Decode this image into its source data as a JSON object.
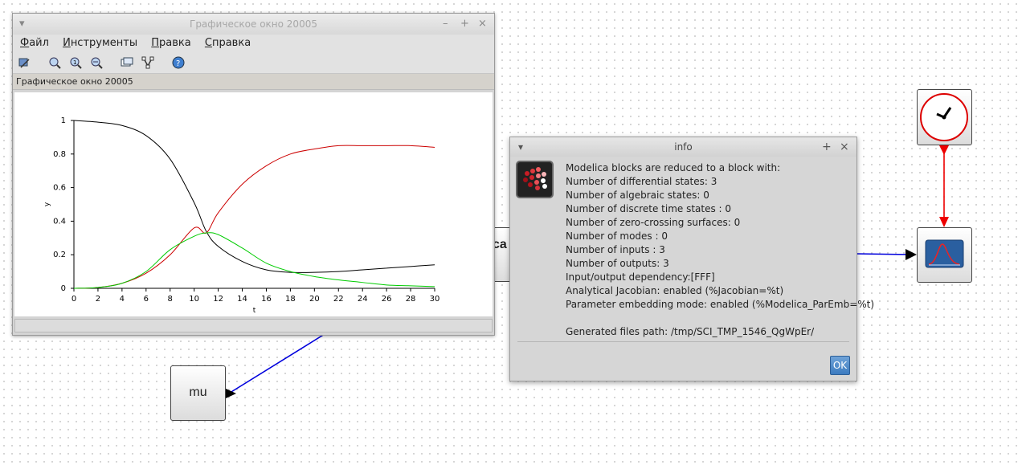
{
  "graphic_window": {
    "title": "Графическое окно 20005",
    "window_buttons": [
      "–",
      "+",
      "×"
    ],
    "menu": [
      {
        "accel": "Ф",
        "rest": "айл"
      },
      {
        "accel": "И",
        "rest": "нструменты"
      },
      {
        "accel": "П",
        "rest": "равка"
      },
      {
        "accel": "С",
        "rest": "правка"
      }
    ],
    "toolbar_icons": [
      "rotate-icon",
      "zoom-in-icon",
      "zoom-reset-icon",
      "zoom-out-icon",
      "datatip-icon",
      "graph-editor-icon",
      "help-icon"
    ],
    "figure_label": "Графическое окно 20005"
  },
  "chart_data": {
    "type": "line",
    "title": "",
    "xlabel": "t",
    "ylabel": "y",
    "xlim": [
      0,
      30
    ],
    "ylim": [
      0,
      1
    ],
    "x_ticks": [
      "0",
      "2",
      "4",
      "6",
      "8",
      "10",
      "12",
      "14",
      "16",
      "18",
      "20",
      "22",
      "24",
      "26",
      "28",
      "30"
    ],
    "y_ticks": [
      "0",
      "0.2",
      "0.4",
      "0.6",
      "0.8",
      "1"
    ],
    "x": [
      0,
      2,
      4,
      6,
      8,
      10,
      11,
      12,
      14,
      16,
      18,
      20,
      22,
      24,
      26,
      28,
      30
    ],
    "series": [
      {
        "color": "#000000",
        "values": [
          1.0,
          0.99,
          0.97,
          0.91,
          0.77,
          0.51,
          0.34,
          0.25,
          0.16,
          0.11,
          0.095,
          0.095,
          0.1,
          0.11,
          0.12,
          0.13,
          0.14
        ]
      },
      {
        "color": "#cc0000",
        "values": [
          0.0,
          0.005,
          0.03,
          0.09,
          0.2,
          0.36,
          0.33,
          0.45,
          0.62,
          0.73,
          0.8,
          0.83,
          0.85,
          0.85,
          0.85,
          0.85,
          0.84
        ]
      },
      {
        "color": "#00cc00",
        "values": [
          0.0,
          0.005,
          0.03,
          0.1,
          0.23,
          0.31,
          0.33,
          0.32,
          0.24,
          0.15,
          0.1,
          0.07,
          0.05,
          0.035,
          0.02,
          0.015,
          0.01
        ]
      }
    ],
    "grid": false
  },
  "info_dialog": {
    "title": "info",
    "lines": [
      "Modelica blocks are reduced to a block with:",
      "Number of differential states: 3",
      "Number of algebraic states: 0",
      "Number of discrete time states : 0",
      "Number of zero-crossing surfaces: 0",
      "Number of modes : 0",
      "Number of inputs : 3",
      "Number of outputs: 3",
      "Input/output dependency:[FFF]",
      "Analytical Jacobian: enabled (%Jacobian=%t)",
      "Parameter embedding mode: enabled (%Modelica_ParEmb=%t)",
      "",
      "Generated files path: /tmp/SCI_TMP_1546_QgWpEr/"
    ],
    "ok_label": "OK"
  },
  "diagram": {
    "mu_block_label": "mu",
    "partial_block_label": "ca",
    "clock_block": "clock-icon",
    "scope_block": "scope-icon",
    "colors": {
      "regular_link": "#0000dd",
      "event_link": "#ee0000"
    }
  }
}
